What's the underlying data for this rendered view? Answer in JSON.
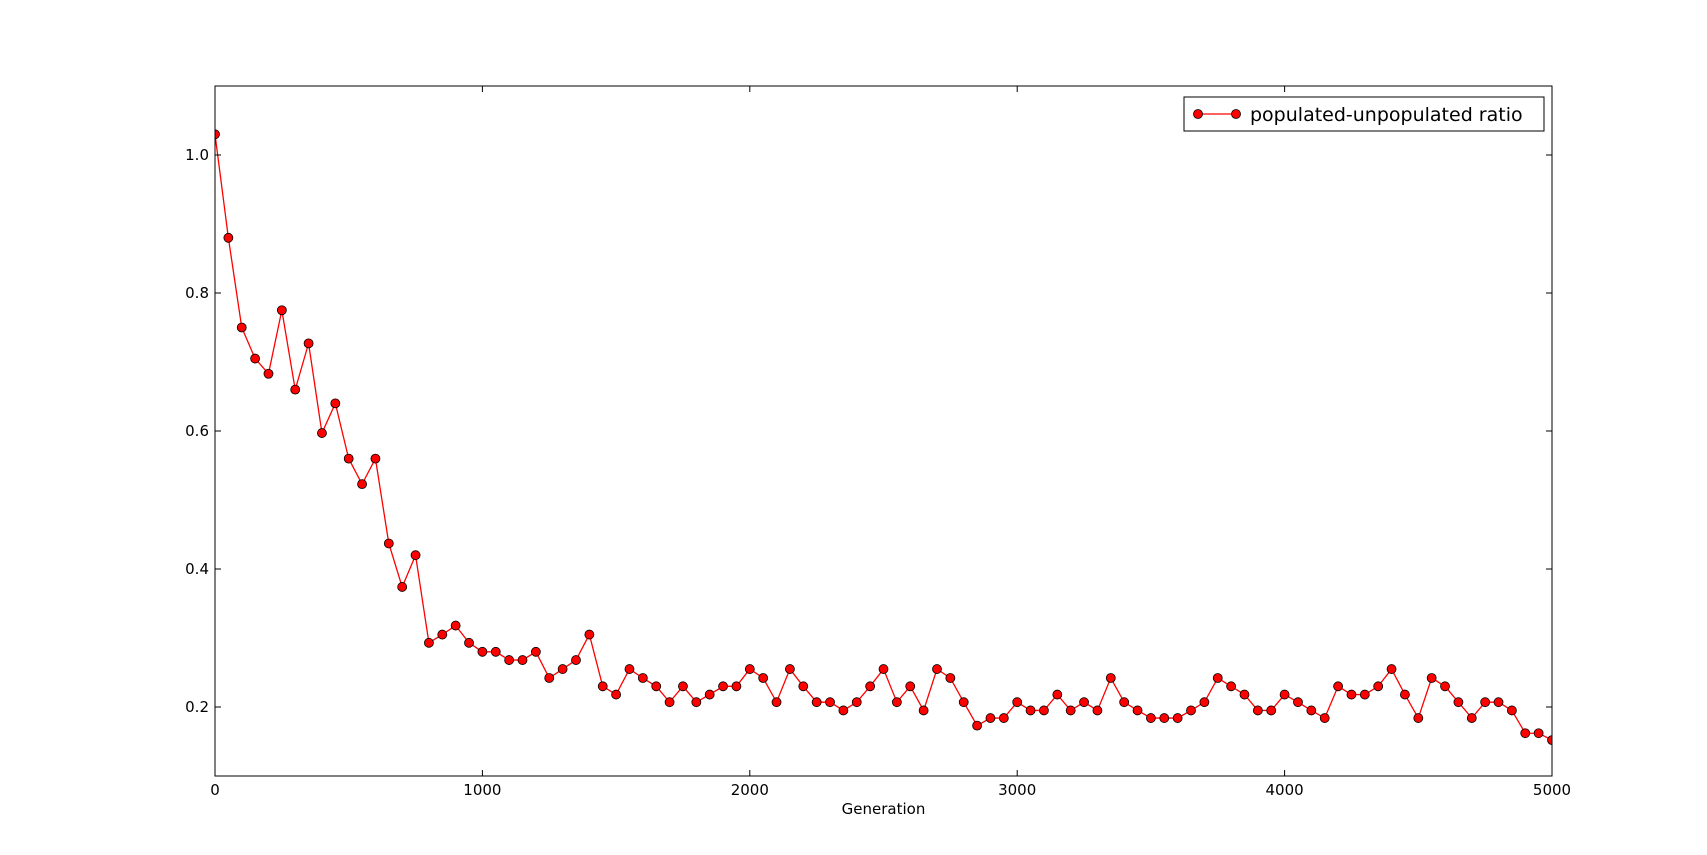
{
  "chart_data": {
    "type": "line",
    "title": "",
    "xlabel": "Generation",
    "ylabel": "",
    "xlim": [
      0,
      5000
    ],
    "ylim": [
      0.1,
      1.1
    ],
    "xticks": [
      0,
      1000,
      2000,
      3000,
      4000,
      5000
    ],
    "yticks": [
      0.2,
      0.4,
      0.6,
      0.8,
      1.0
    ],
    "xtick_labels": [
      "0",
      "1000",
      "2000",
      "3000",
      "4000",
      "5000"
    ],
    "ytick_labels": [
      "0.2",
      "0.4",
      "0.6",
      "0.8",
      "1.0"
    ],
    "grid": false,
    "legend_position": "top-right",
    "series": [
      {
        "name": "populated-unpopulated ratio",
        "color": "#ff0000",
        "marker": "circle",
        "x": [
          0,
          50,
          100,
          150,
          200,
          250,
          300,
          350,
          400,
          450,
          500,
          550,
          600,
          650,
          700,
          750,
          800,
          850,
          900,
          950,
          1000,
          1050,
          1100,
          1150,
          1200,
          1250,
          1300,
          1350,
          1400,
          1450,
          1500,
          1550,
          1600,
          1650,
          1700,
          1750,
          1800,
          1850,
          1900,
          1950,
          2000,
          2050,
          2100,
          2150,
          2200,
          2250,
          2300,
          2350,
          2400,
          2450,
          2500,
          2550,
          2600,
          2650,
          2700,
          2750,
          2800,
          2850,
          2900,
          2950,
          3000,
          3050,
          3100,
          3150,
          3200,
          3250,
          3300,
          3350,
          3400,
          3450,
          3500,
          3550,
          3600,
          3650,
          3700,
          3750,
          3800,
          3850,
          3900,
          3950,
          4000,
          4050,
          4100,
          4150,
          4200,
          4250,
          4300,
          4350,
          4400,
          4450,
          4500,
          4550,
          4600,
          4650,
          4700,
          4750,
          4800,
          4850,
          4900,
          4950,
          5000
        ],
        "y": [
          1.03,
          0.88,
          0.75,
          0.705,
          0.683,
          0.775,
          0.66,
          0.727,
          0.597,
          0.64,
          0.56,
          0.523,
          0.56,
          0.437,
          0.374,
          0.42,
          0.293,
          0.305,
          0.318,
          0.293,
          0.28,
          0.28,
          0.268,
          0.268,
          0.28,
          0.242,
          0.255,
          0.268,
          0.305,
          0.23,
          0.218,
          0.255,
          0.242,
          0.23,
          0.207,
          0.23,
          0.207,
          0.218,
          0.23,
          0.23,
          0.255,
          0.242,
          0.207,
          0.255,
          0.23,
          0.207,
          0.207,
          0.195,
          0.207,
          0.23,
          0.255,
          0.207,
          0.23,
          0.195,
          0.255,
          0.242,
          0.207,
          0.173,
          0.184,
          0.184,
          0.207,
          0.195,
          0.195,
          0.218,
          0.195,
          0.207,
          0.195,
          0.242,
          0.207,
          0.195,
          0.184,
          0.184,
          0.184,
          0.195,
          0.207,
          0.242,
          0.23,
          0.218,
          0.195,
          0.195,
          0.218,
          0.207,
          0.195,
          0.184,
          0.23,
          0.218,
          0.218,
          0.23,
          0.255,
          0.218,
          0.184,
          0.242,
          0.23,
          0.207,
          0.184,
          0.207,
          0.207,
          0.195,
          0.162,
          0.162,
          0.152
        ]
      }
    ]
  }
}
